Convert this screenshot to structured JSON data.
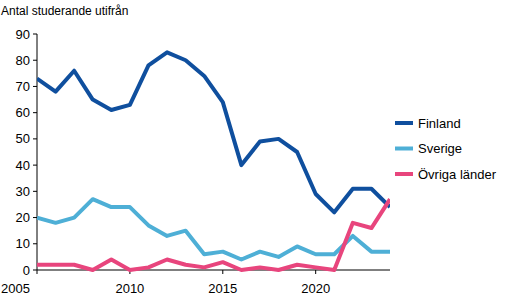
{
  "chart_data": {
    "type": "line",
    "title": "Antal studerande utifrån",
    "x": [
      2005,
      2006,
      2007,
      2008,
      2009,
      2010,
      2011,
      2012,
      2013,
      2014,
      2015,
      2016,
      2017,
      2018,
      2019,
      2020,
      2021,
      2022,
      2023,
      2024
    ],
    "series": [
      {
        "name": "Finland",
        "color": "#0f4f9e",
        "values": [
          73,
          68,
          76,
          65,
          61,
          63,
          78,
          83,
          80,
          74,
          64,
          40,
          49,
          50,
          45,
          29,
          22,
          31,
          31,
          24
        ]
      },
      {
        "name": "Sverige",
        "color": "#4eafd6",
        "values": [
          20,
          18,
          20,
          27,
          24,
          24,
          17,
          13,
          15,
          6,
          7,
          4,
          7,
          5,
          9,
          6,
          6,
          13,
          7,
          7
        ]
      },
      {
        "name": "Övriga länder",
        "color": "#e8457d",
        "values": [
          2,
          2,
          2,
          0,
          4,
          0,
          1,
          4,
          2,
          1,
          3,
          0,
          1,
          0,
          2,
          1,
          0,
          18,
          16,
          27
        ]
      }
    ],
    "xlim": [
      2005,
      2024
    ],
    "xticks": [
      2005,
      2010,
      2015,
      2020
    ],
    "ylim": [
      0,
      90
    ],
    "yticks": [
      0,
      10,
      20,
      30,
      40,
      50,
      60,
      70,
      80,
      90
    ],
    "grid": false,
    "legend": "right"
  }
}
